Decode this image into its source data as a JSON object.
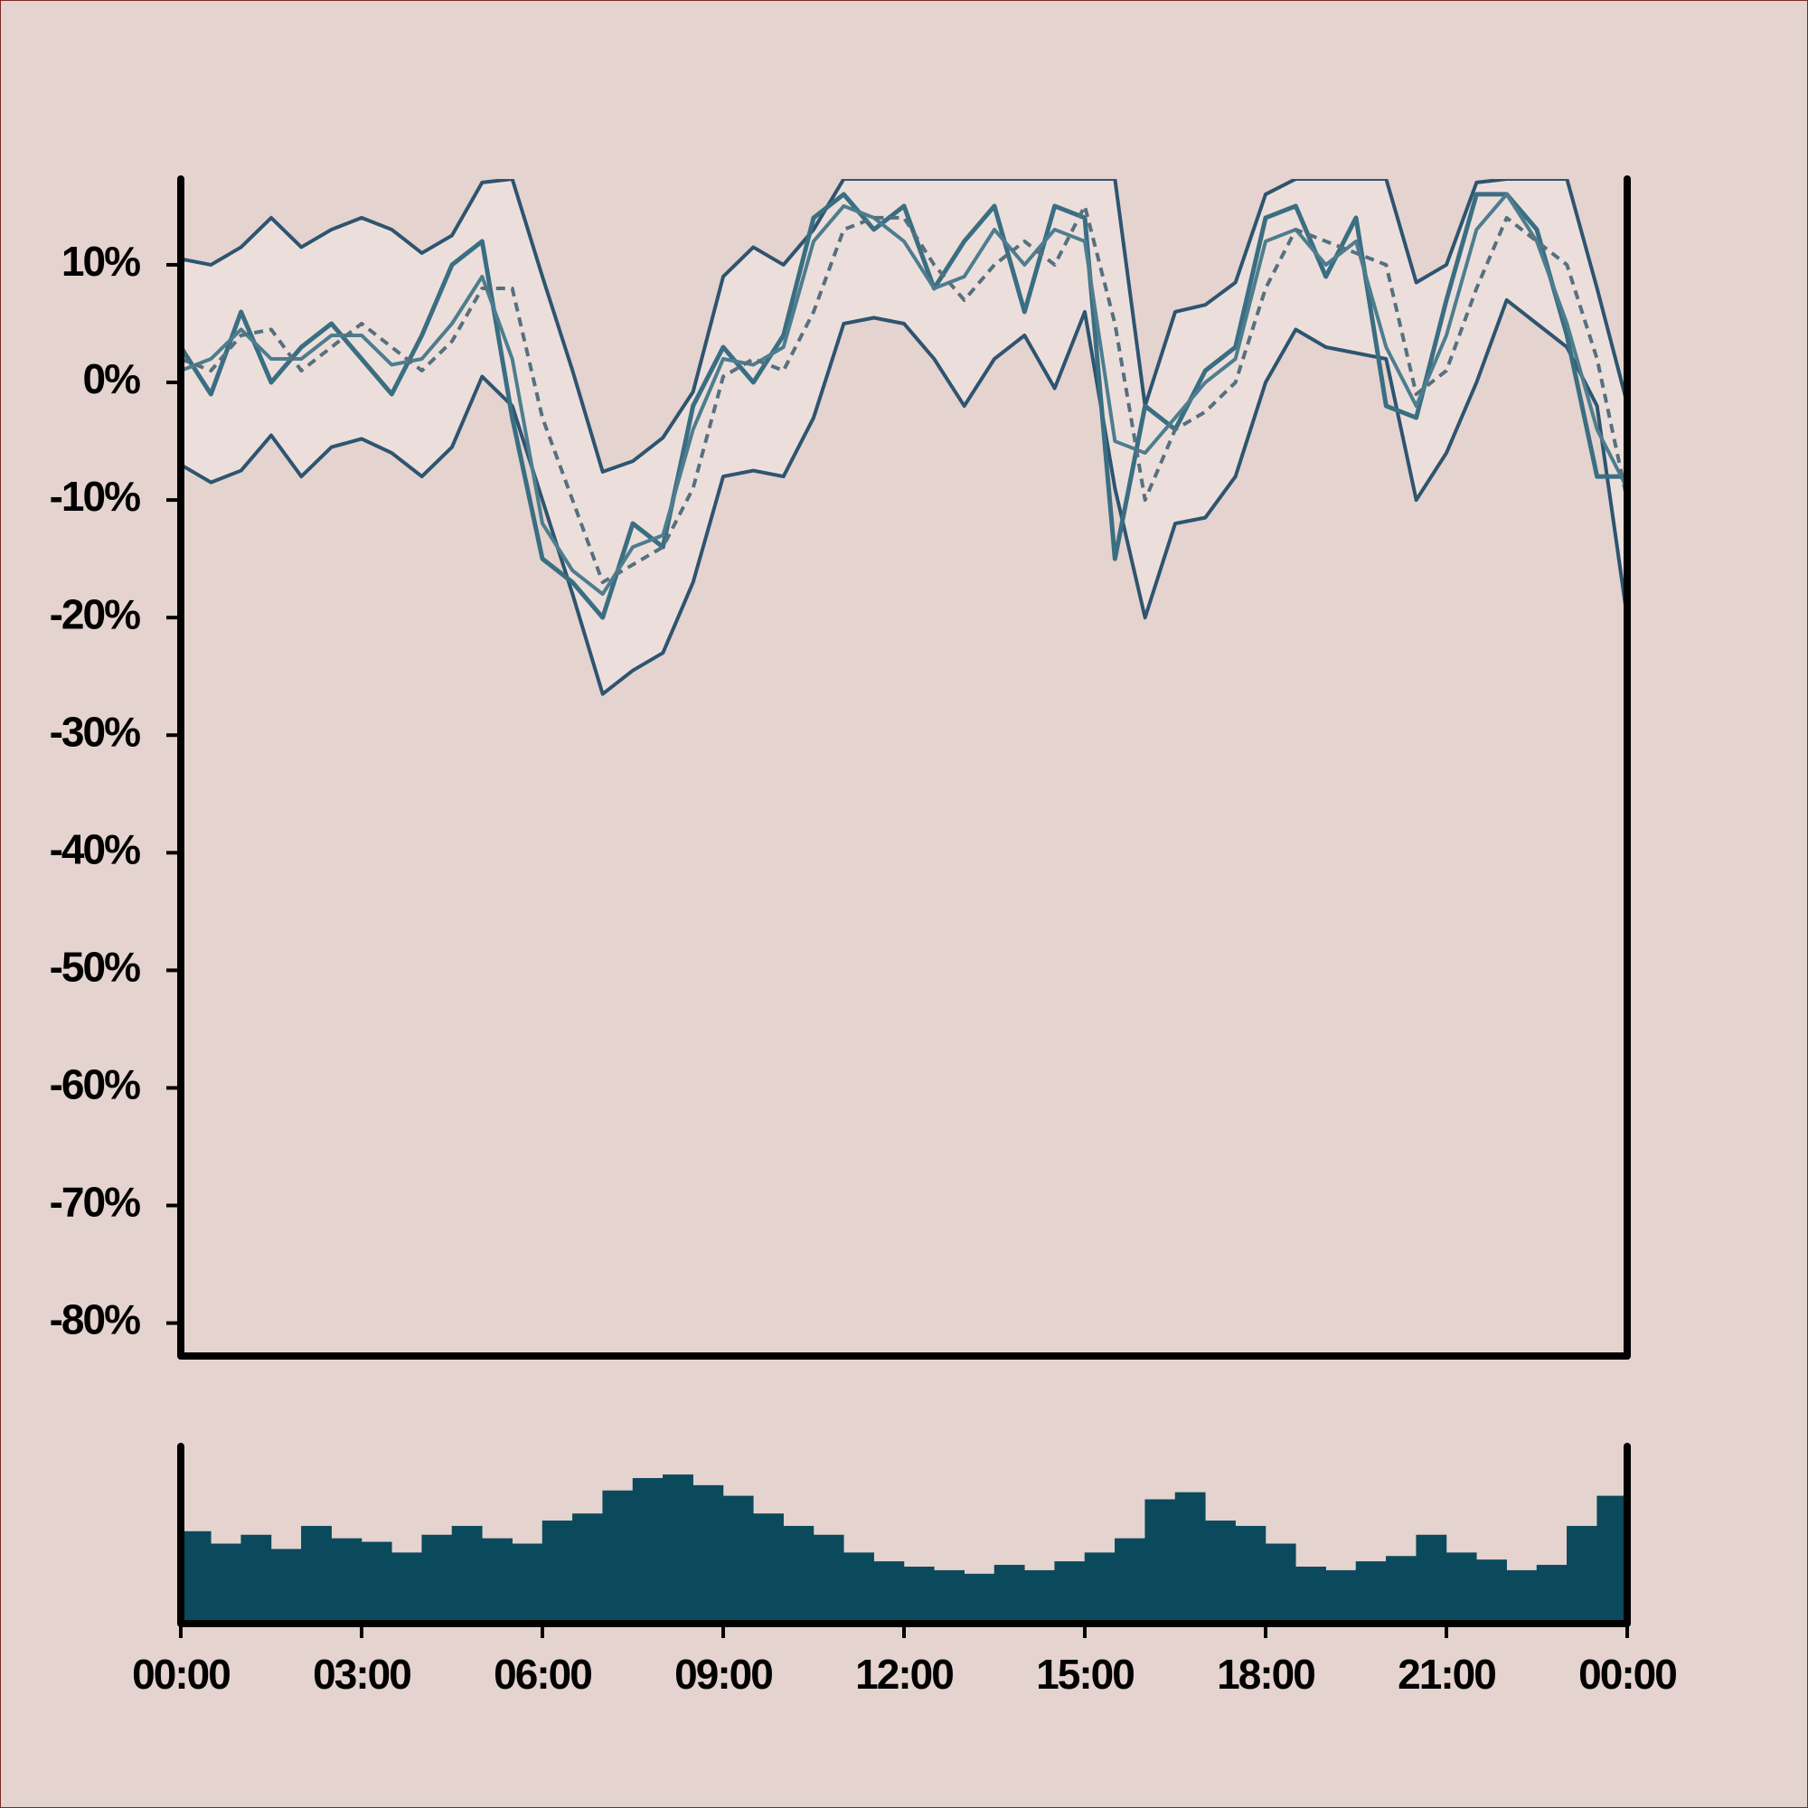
{
  "chart_data": [
    {
      "type": "line",
      "x": [
        0,
        0.5,
        1,
        1.5,
        2,
        2.5,
        3,
        3.5,
        4,
        4.5,
        5,
        5.5,
        6,
        6.5,
        7,
        7.5,
        8,
        8.5,
        9,
        9.5,
        10,
        10.5,
        11,
        11.5,
        12,
        12.5,
        13,
        13.5,
        14,
        14.5,
        15,
        15.5,
        16,
        16.5,
        17,
        17.5,
        18,
        18.5,
        19,
        19.5,
        20,
        20.5,
        21,
        21.5,
        22,
        22.5,
        23,
        23.5,
        24
      ],
      "xlim": [
        0,
        24
      ],
      "ylim": [
        -82.8,
        17.3
      ],
      "yticks": [
        {
          "value": 10,
          "label": "10%"
        },
        {
          "value": 0,
          "label": "0%"
        },
        {
          "value": -10,
          "label": "-10%"
        },
        {
          "value": -20,
          "label": "-20%"
        },
        {
          "value": -30,
          "label": "-30%"
        },
        {
          "value": -40,
          "label": "-40%"
        },
        {
          "value": -50,
          "label": "-50%"
        },
        {
          "value": -60,
          "label": "-60%"
        },
        {
          "value": -70,
          "label": "-70%"
        },
        {
          "value": -80,
          "label": "-80%"
        }
      ],
      "fill_between": [
        0,
        1
      ],
      "fill_color": "#ecdfdb",
      "series": [
        {
          "color": "#2e5470",
          "width": 4,
          "values": [
            10.5,
            10,
            11.5,
            14,
            11.5,
            13,
            14,
            13,
            11,
            12.5,
            17,
            17.3,
            9,
            1,
            -7.6,
            -6.7,
            -4.7,
            -0.8,
            9,
            11.5,
            10,
            13,
            17.3,
            17.3,
            17.3,
            17.3,
            17.3,
            17.3,
            17.3,
            17.3,
            17.3,
            17.3,
            -2,
            6,
            6.6,
            8.5,
            16,
            17.3,
            17.3,
            17.3,
            17.3,
            8.5,
            10,
            17,
            17.3,
            17.3,
            17.3,
            8,
            -1.8
          ]
        },
        {
          "color": "#2e5470",
          "width": 4,
          "values": [
            -7,
            -8.5,
            -7.5,
            -4.5,
            -8,
            -5.5,
            -4.8,
            -6,
            -8,
            -5.5,
            0.5,
            -2,
            -10,
            -18,
            -26.5,
            -24.5,
            -23,
            -17,
            -8,
            -7.5,
            -8,
            -3,
            5,
            5.5,
            5,
            2,
            -2,
            2,
            4,
            -0.5,
            6,
            -9,
            -20,
            -12,
            -11.5,
            -8,
            0,
            4.5,
            3,
            2.5,
            2,
            -10,
            -6,
            0,
            7,
            5,
            3,
            -2,
            -20
          ]
        },
        {
          "color": "#3a6e82",
          "width": 5,
          "values": [
            3,
            -1,
            6,
            0,
            3,
            5,
            2,
            -1,
            4,
            10,
            12,
            -3,
            -15,
            -17,
            -20,
            -12,
            -14,
            -2,
            3,
            0,
            4,
            14,
            16,
            13,
            15,
            8,
            12,
            15,
            6,
            15,
            14,
            -15,
            -2,
            -4,
            1,
            3,
            14,
            15,
            9,
            14,
            -2,
            -3,
            7,
            16,
            16,
            13,
            4,
            -8,
            -8
          ]
        },
        {
          "color": "#4d7d8e",
          "width": 4,
          "values": [
            1,
            2,
            4.5,
            2,
            2,
            4,
            4,
            1.5,
            2,
            5,
            9,
            2,
            -12,
            -16,
            -18,
            -14,
            -13,
            -4,
            2,
            1.5,
            3,
            12,
            15,
            14,
            12,
            8,
            9,
            13,
            10,
            13,
            12,
            -5,
            -6,
            -3,
            0,
            2,
            12,
            13,
            10,
            12,
            3,
            -2,
            4,
            13,
            16,
            12,
            5,
            -4,
            -9
          ]
        },
        {
          "color": "#56707f",
          "width": 4,
          "dash": true,
          "values": [
            2,
            1,
            4,
            4.5,
            1,
            3,
            5,
            3,
            1,
            3.5,
            8,
            8,
            -3,
            -10,
            -17,
            -15.5,
            -14,
            -9,
            0.5,
            2,
            1,
            6,
            13,
            14,
            14,
            10,
            7,
            10,
            12,
            10,
            15,
            5,
            -10,
            -4,
            -2.5,
            0,
            8,
            13,
            12,
            11,
            10,
            -1,
            1,
            8,
            14,
            12,
            10,
            2,
            -10
          ]
        }
      ]
    },
    {
      "type": "histogram",
      "bins": [
        0,
        0.5,
        1,
        1.5,
        2,
        2.5,
        3,
        3.5,
        4,
        4.5,
        5,
        5.5,
        6,
        6.5,
        7,
        7.5,
        8,
        8.5,
        9,
        9.5,
        10,
        10.5,
        11,
        11.5,
        12,
        12.5,
        13,
        13.5,
        14,
        14.5,
        15,
        15.5,
        16,
        16.5,
        17,
        17.5,
        18,
        18.5,
        19,
        19.5,
        20,
        20.5,
        21,
        21.5,
        22,
        22.5,
        23,
        23.5,
        24
      ],
      "values": [
        52,
        45,
        50,
        42,
        55,
        48,
        46,
        40,
        50,
        55,
        48,
        45,
        58,
        62,
        75,
        82,
        84,
        78,
        72,
        62,
        55,
        50,
        40,
        35,
        32,
        30,
        28,
        33,
        30,
        35,
        40,
        48,
        70,
        74,
        58,
        55,
        45,
        32,
        30,
        35,
        38,
        50,
        40,
        36,
        30,
        33,
        55,
        72
      ],
      "color": "#0b4a5c",
      "xlim": [
        0,
        24
      ],
      "ylim": [
        0,
        100
      ],
      "xticks": [
        {
          "value": 0,
          "label": "00:00"
        },
        {
          "value": 3,
          "label": "03:00"
        },
        {
          "value": 6,
          "label": "06:00"
        },
        {
          "value": 9,
          "label": "09:00"
        },
        {
          "value": 12,
          "label": "12:00"
        },
        {
          "value": 15,
          "label": "15:00"
        },
        {
          "value": 18,
          "label": "18:00"
        },
        {
          "value": 21,
          "label": "21:00"
        },
        {
          "value": 24,
          "label": "00:00"
        }
      ]
    }
  ]
}
